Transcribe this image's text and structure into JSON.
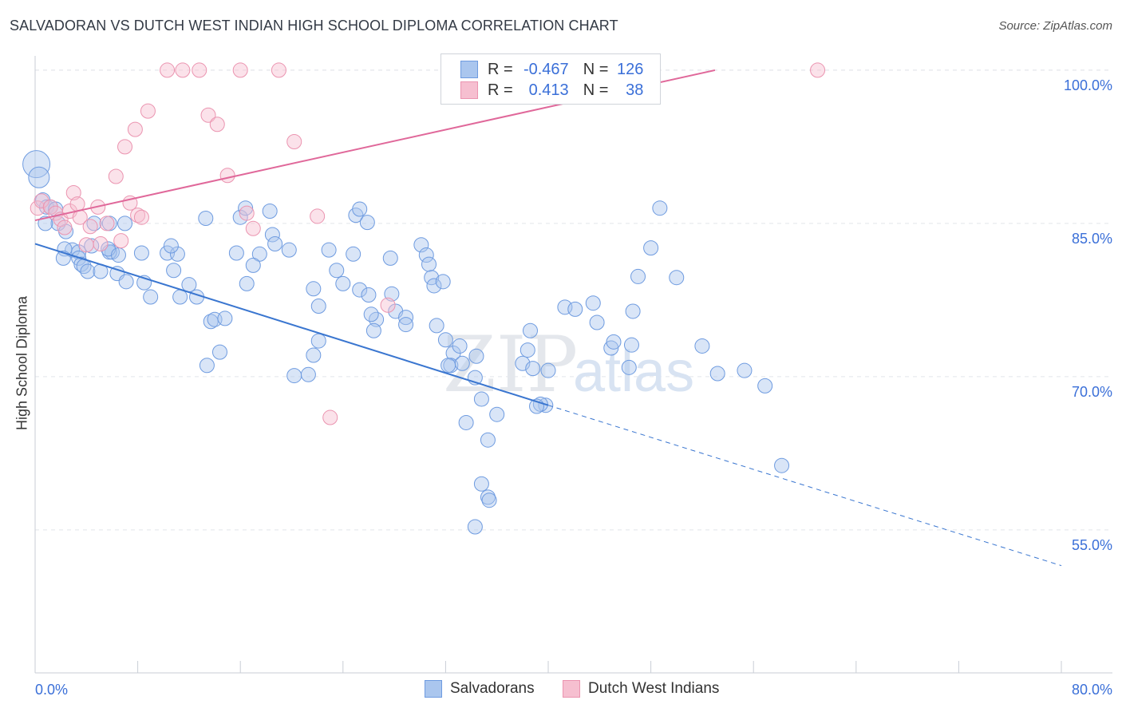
{
  "title": "SALVADORAN VS DUTCH WEST INDIAN HIGH SCHOOL DIPLOMA CORRELATION CHART",
  "source": "Source: ZipAtlas.com",
  "legend": {
    "r_label": "R =",
    "n_label": "N =",
    "rows": [
      {
        "r": "-0.467",
        "n": "126"
      },
      {
        "r": "0.413",
        "n": "38"
      }
    ]
  },
  "colors": {
    "blue_fill": "#aac6ee",
    "blue_edge": "#6e9be0",
    "blue_line": "#3a76d0",
    "pink_fill": "#f6bfd0",
    "pink_edge": "#eb94b0",
    "pink_line": "#e0689a",
    "tick_text": "#3a6fd8",
    "grid": "#e2e5ea"
  },
  "chart_data": {
    "type": "scatter",
    "title": "SALVADORAN VS DUTCH WEST INDIAN HIGH SCHOOL DIPLOMA CORRELATION CHART",
    "xlabel": "",
    "ylabel": "High School Diploma",
    "xlim": [
      0,
      80
    ],
    "ylim": [
      41,
      101.4
    ],
    "x_tick_labels": [
      "0.0%",
      "80.0%"
    ],
    "y_ticks": [
      100,
      85,
      70,
      55
    ],
    "y_tick_labels": [
      "100.0%",
      "85.0%",
      "70.0%",
      "55.0%"
    ],
    "grid": true,
    "watermark": {
      "main": "ZIP",
      "sub": "atlas"
    },
    "series": [
      {
        "name": "Salvadorans",
        "R": -0.467,
        "N": 126,
        "trend": {
          "x0": 0,
          "y0": 83.0,
          "x1": 40,
          "y1": 67.2,
          "dash_x1": 80,
          "dash_y1": 51.5
        },
        "points": [
          [
            0.1,
            90.8
          ],
          [
            0.3,
            89.5
          ],
          [
            0.6,
            87.3
          ],
          [
            0.9,
            86.6
          ],
          [
            1.2,
            86.6
          ],
          [
            1.6,
            86.4
          ],
          [
            1.8,
            85.0
          ],
          [
            0.8,
            85.0
          ],
          [
            2.4,
            84.2
          ],
          [
            2.9,
            82.4
          ],
          [
            3.4,
            82.2
          ],
          [
            2.3,
            82.5
          ],
          [
            2.2,
            81.6
          ],
          [
            3.4,
            81.6
          ],
          [
            3.6,
            81.0
          ],
          [
            3.8,
            80.8
          ],
          [
            6.0,
            82.2
          ],
          [
            5.8,
            82.2
          ],
          [
            5.7,
            82.5
          ],
          [
            6.5,
            81.9
          ],
          [
            4.4,
            82.8
          ],
          [
            4.6,
            85.0
          ],
          [
            5.8,
            85.0
          ],
          [
            7.0,
            85.0
          ],
          [
            4.1,
            80.3
          ],
          [
            5.1,
            80.3
          ],
          [
            6.4,
            80.1
          ],
          [
            7.1,
            79.3
          ],
          [
            8.3,
            82.1
          ],
          [
            8.5,
            79.2
          ],
          [
            9.0,
            77.8
          ],
          [
            10.3,
            82.1
          ],
          [
            11.1,
            82.0
          ],
          [
            10.6,
            82.8
          ],
          [
            10.8,
            80.4
          ],
          [
            11.3,
            77.8
          ],
          [
            12.0,
            79.0
          ],
          [
            12.6,
            77.8
          ],
          [
            13.3,
            85.5
          ],
          [
            13.7,
            75.4
          ],
          [
            13.4,
            71.1
          ],
          [
            14.0,
            75.6
          ],
          [
            14.4,
            72.4
          ],
          [
            14.8,
            75.7
          ],
          [
            16.5,
            79.1
          ],
          [
            15.7,
            82.1
          ],
          [
            16.0,
            85.6
          ],
          [
            16.4,
            86.5
          ],
          [
            17.5,
            82.0
          ],
          [
            17.0,
            80.9
          ],
          [
            18.3,
            86.2
          ],
          [
            18.5,
            83.9
          ],
          [
            18.7,
            83.0
          ],
          [
            19.8,
            82.4
          ],
          [
            21.7,
            78.6
          ],
          [
            22.1,
            76.9
          ],
          [
            20.2,
            70.1
          ],
          [
            21.3,
            70.2
          ],
          [
            21.7,
            72.1
          ],
          [
            22.1,
            73.5
          ],
          [
            22.9,
            82.4
          ],
          [
            23.5,
            80.4
          ],
          [
            24.0,
            79.1
          ],
          [
            24.8,
            82.0
          ],
          [
            25.0,
            85.8
          ],
          [
            25.3,
            86.4
          ],
          [
            25.9,
            85.1
          ],
          [
            25.3,
            78.5
          ],
          [
            26.0,
            78.0
          ],
          [
            26.6,
            75.6
          ],
          [
            26.4,
            74.5
          ],
          [
            26.2,
            76.1
          ],
          [
            27.7,
            81.6
          ],
          [
            27.8,
            78.1
          ],
          [
            28.1,
            76.4
          ],
          [
            28.9,
            75.8
          ],
          [
            28.9,
            75.1
          ],
          [
            30.1,
            82.9
          ],
          [
            30.5,
            81.9
          ],
          [
            30.7,
            81.0
          ],
          [
            30.9,
            79.7
          ],
          [
            31.1,
            78.9
          ],
          [
            31.8,
            79.3
          ],
          [
            31.3,
            75.0
          ],
          [
            32.0,
            73.6
          ],
          [
            32.6,
            72.3
          ],
          [
            32.4,
            71.1
          ],
          [
            32.2,
            71.1
          ],
          [
            33.1,
            73.0
          ],
          [
            33.3,
            71.3
          ],
          [
            34.4,
            72.0
          ],
          [
            34.3,
            69.9
          ],
          [
            34.8,
            67.8
          ],
          [
            35.3,
            63.8
          ],
          [
            36.0,
            66.3
          ],
          [
            33.6,
            65.5
          ],
          [
            34.8,
            59.5
          ],
          [
            35.3,
            58.2
          ],
          [
            35.4,
            57.9
          ],
          [
            34.3,
            55.3
          ],
          [
            40.0,
            70.6
          ],
          [
            38.0,
            71.3
          ],
          [
            38.4,
            72.6
          ],
          [
            38.6,
            74.5
          ],
          [
            38.8,
            70.8
          ],
          [
            39.8,
            67.2
          ],
          [
            39.4,
            67.3
          ],
          [
            39.1,
            67.1
          ],
          [
            41.3,
            76.8
          ],
          [
            42.1,
            76.6
          ],
          [
            43.5,
            77.2
          ],
          [
            43.8,
            75.3
          ],
          [
            44.9,
            72.8
          ],
          [
            45.1,
            73.4
          ],
          [
            46.3,
            70.9
          ],
          [
            46.5,
            73.1
          ],
          [
            46.6,
            76.4
          ],
          [
            47.0,
            79.8
          ],
          [
            48.0,
            82.6
          ],
          [
            48.7,
            86.5
          ],
          [
            50.0,
            79.7
          ],
          [
            52.0,
            73.0
          ],
          [
            53.2,
            70.3
          ],
          [
            55.3,
            70.6
          ],
          [
            56.9,
            69.1
          ],
          [
            58.2,
            61.3
          ]
        ]
      },
      {
        "name": "Dutch West Indians",
        "R": 0.413,
        "N": 38,
        "trend": {
          "x0": 0,
          "y0": 85.3,
          "x1": 53,
          "y1": 100.0
        },
        "points": [
          [
            0.2,
            86.5
          ],
          [
            0.5,
            87.2
          ],
          [
            1.2,
            86.6
          ],
          [
            1.6,
            86.0
          ],
          [
            2.0,
            85.4
          ],
          [
            2.3,
            84.6
          ],
          [
            2.7,
            86.2
          ],
          [
            3.0,
            88.0
          ],
          [
            3.3,
            86.9
          ],
          [
            3.5,
            85.6
          ],
          [
            4.0,
            82.9
          ],
          [
            4.3,
            84.7
          ],
          [
            4.9,
            86.6
          ],
          [
            5.1,
            83.0
          ],
          [
            5.6,
            85.0
          ],
          [
            6.3,
            89.6
          ],
          [
            6.7,
            83.3
          ],
          [
            7.0,
            92.5
          ],
          [
            7.4,
            87.0
          ],
          [
            7.8,
            94.2
          ],
          [
            8.0,
            85.8
          ],
          [
            8.3,
            85.6
          ],
          [
            8.8,
            96.0
          ],
          [
            10.3,
            100.0
          ],
          [
            11.5,
            100.0
          ],
          [
            12.8,
            100.0
          ],
          [
            13.5,
            95.6
          ],
          [
            14.2,
            94.7
          ],
          [
            15.0,
            89.7
          ],
          [
            16.0,
            100.0
          ],
          [
            16.5,
            86.0
          ],
          [
            17.0,
            84.5
          ],
          [
            19.0,
            100.0
          ],
          [
            20.2,
            93.0
          ],
          [
            22.0,
            85.7
          ],
          [
            23.0,
            66.0
          ],
          [
            27.5,
            77.0
          ],
          [
            61.0,
            100.0
          ]
        ]
      }
    ]
  },
  "bottom_legend": [
    {
      "label": "Salvadorans"
    },
    {
      "label": "Dutch West Indians"
    }
  ]
}
